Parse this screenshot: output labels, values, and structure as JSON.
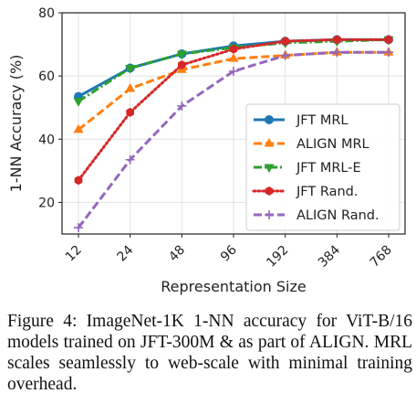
{
  "caption": "Figure 4: ImageNet-1K 1-NN accuracy for ViT-B/16 models trained on JFT-300M & as part of ALIGN. MRL scales seamlessly to web-scale with minimal training overhead.",
  "chart_data": {
    "type": "line",
    "xlabel": "Representation Size",
    "ylabel": "1-NN Accuracy (%)",
    "categories": [
      "12",
      "24",
      "48",
      "96",
      "192",
      "384",
      "768"
    ],
    "ylim": [
      10,
      80
    ],
    "yticks": [
      20,
      40,
      60,
      80
    ],
    "grid": true,
    "legend_position": "lower-right",
    "series": [
      {
        "name": "JFT MRL",
        "color": "#1f77b4",
        "marker": "circle",
        "linestyle": "solid",
        "values": [
          53.5,
          62.5,
          67.0,
          69.5,
          71.0,
          71.5,
          71.5
        ]
      },
      {
        "name": "ALIGN MRL",
        "color": "#ff7f0e",
        "marker": "triangle-up",
        "linestyle": "dashed",
        "values": [
          43.0,
          56.0,
          62.0,
          65.5,
          66.5,
          67.5,
          67.5
        ]
      },
      {
        "name": "JFT MRL-E",
        "color": "#2ca02c",
        "marker": "triangle-down",
        "linestyle": "dashdot",
        "values": [
          52.0,
          62.5,
          67.0,
          69.0,
          70.5,
          71.0,
          71.5
        ]
      },
      {
        "name": "JFT Rand.",
        "color": "#d62728",
        "marker": "hexagon",
        "linestyle": "dotted",
        "values": [
          27.0,
          48.5,
          63.5,
          68.5,
          71.0,
          71.5,
          71.5
        ]
      },
      {
        "name": "ALIGN Rand.",
        "color": "#9467bd",
        "marker": "plus",
        "linestyle": "dashed",
        "values": [
          12.0,
          33.5,
          50.5,
          61.5,
          66.5,
          67.5,
          67.5
        ]
      }
    ]
  }
}
